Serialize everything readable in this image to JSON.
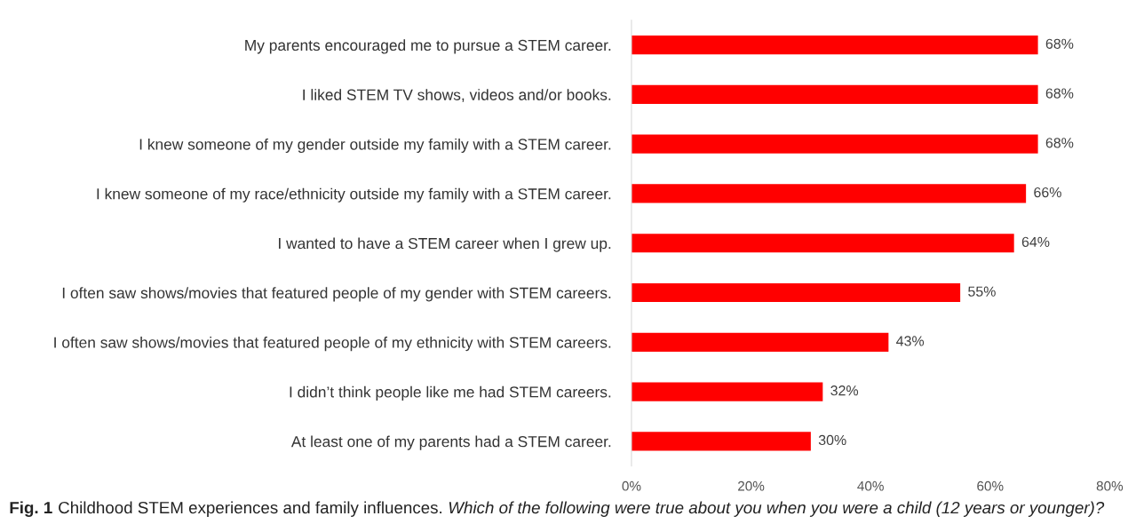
{
  "chart_data": {
    "type": "bar",
    "orientation": "horizontal",
    "categories": [
      "My parents encouraged me to pursue a STEM career.",
      "I liked STEM TV shows, videos and/or books.",
      "I knew someone of my gender outside my family with a STEM career.",
      "I knew someone of my race/ethnicity outside my family with a STEM career.",
      "I wanted to have a STEM career when I grew up.",
      "I often saw shows/movies that featured people of my gender with STEM careers.",
      "I often saw shows/movies that featured people of my ethnicity with STEM careers.",
      "I didn’t think people like me had STEM careers.",
      "At least one of my parents had a STEM career."
    ],
    "values": [
      68,
      68,
      68,
      66,
      64,
      55,
      43,
      32,
      30
    ],
    "value_labels": [
      "68%",
      "68%",
      "68%",
      "66%",
      "64%",
      "55%",
      "43%",
      "32%",
      "30%"
    ],
    "color": "#ff0000",
    "xlim": [
      0,
      80
    ],
    "xticks": [
      {
        "value": 0,
        "label": "0%"
      },
      {
        "value": 20,
        "label": "20%"
      },
      {
        "value": 40,
        "label": "40%"
      },
      {
        "value": 60,
        "label": "60%"
      },
      {
        "value": 80,
        "label": "80%"
      }
    ],
    "grid": false,
    "legend": false,
    "annotations": [
      "Fig. 1",
      "Childhood STEM experiences and family influences.",
      "Which of the following were true about you when you were a child (12 years or younger)?"
    ]
  }
}
